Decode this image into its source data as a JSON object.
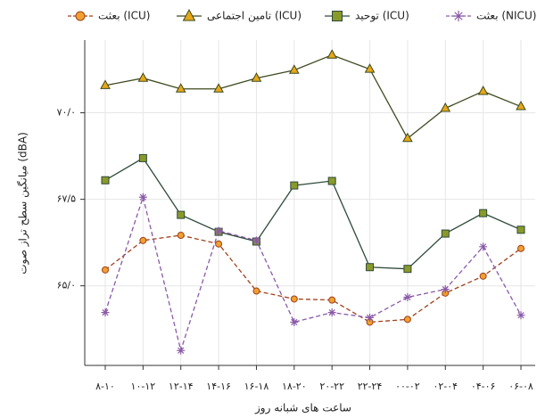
{
  "chart_data": {
    "type": "line",
    "y_label": "میانگین سطح تراز صوت (dBA)",
    "x_label": "ساعت های شبانه روز",
    "categories": [
      "۸-۱۰",
      "۱۰-۱۲",
      "۱۲-۱۴",
      "۱۴-۱۶",
      "۱۶-۱۸",
      "۱۸-۲۰",
      "۲۰-۲۲",
      "۲۲-۲۴",
      "۰۰-۰۲",
      "۰۲-۰۴",
      "۰۴-۰۶",
      "۰۶-۰۸"
    ],
    "ylim": [
      62.7,
      72.1
    ],
    "yticks": [
      {
        "value": 65,
        "label": "۶۵/۰"
      },
      {
        "value": 67.5,
        "label": "۶۷/۵"
      },
      {
        "value": 70,
        "label": "۷۰/۰"
      }
    ],
    "grid": true,
    "series": [
      {
        "name": "بعثت (ICU)",
        "color": "#a0401a",
        "marker_color": "#f0a030",
        "marker": "circle",
        "dashed": true,
        "values": [
          65.46,
          66.31,
          66.46,
          66.21,
          64.85,
          64.62,
          64.59,
          63.95,
          64.03,
          64.79,
          65.28,
          66.08
        ]
      },
      {
        "name": "تامین اجتماعی (ICU)",
        "color": "#3d4a1f",
        "marker_color": "#e6a817",
        "marker": "triangle",
        "dashed": false,
        "values": [
          70.79,
          71.0,
          70.69,
          70.69,
          71.0,
          71.23,
          71.67,
          71.26,
          69.26,
          70.13,
          70.62,
          70.18
        ]
      },
      {
        "name": "توحید (ICU)",
        "color": "#2e4a3a",
        "marker_color": "#8a9a2a",
        "marker": "square",
        "dashed": false,
        "values": [
          68.05,
          68.69,
          67.05,
          66.56,
          66.28,
          67.9,
          68.03,
          65.54,
          65.49,
          66.51,
          67.1,
          66.62
        ]
      },
      {
        "name": "بعثت (NICU)",
        "color": "#8a5aa8",
        "marker_color": "#8a5aa8",
        "marker": "star",
        "dashed": true,
        "values": [
          64.23,
          67.56,
          63.13,
          66.59,
          66.31,
          63.95,
          64.23,
          64.08,
          64.67,
          64.9,
          66.13,
          64.15
        ]
      }
    ]
  }
}
